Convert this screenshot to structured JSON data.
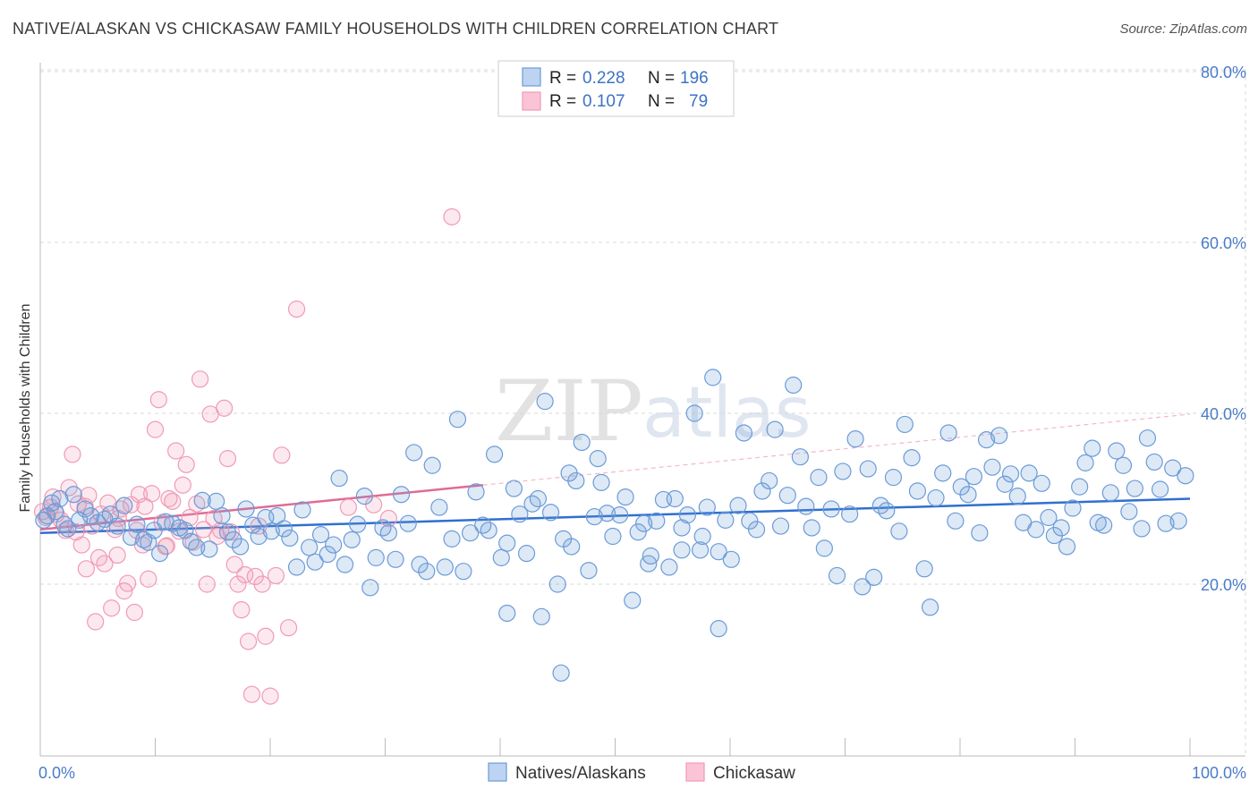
{
  "header": {
    "title": "NATIVE/ALASKAN VS CHICKASAW FAMILY HOUSEHOLDS WITH CHILDREN CORRELATION CHART",
    "source": "Source: ZipAtlas.com"
  },
  "watermark": {
    "zip": "ZIP",
    "atlas": "atlas"
  },
  "colors": {
    "natives": "#6b9bd8",
    "natives_line": "#2f6fd0",
    "chickasaw": "#f19ab5",
    "chickasaw_line": "#e06b95",
    "tick_text": "#4a7cc9",
    "grid": "#d8d8d8"
  },
  "legend": {
    "rows": [
      {
        "r_label": "R =",
        "r_value": "0.228",
        "n_label": "N =",
        "n_value": "196"
      },
      {
        "r_label": "R =",
        "r_value": "0.107",
        "n_label": "N =",
        "n_value": "79"
      }
    ]
  },
  "bottom_legend": [
    "Natives/Alaskans",
    "Chickasaw"
  ],
  "chart_data": {
    "type": "scatter",
    "title": "NATIVE/ALASKAN VS CHICKASAW FAMILY HOUSEHOLDS WITH CHILDREN CORRELATION CHART",
    "xlabel": "",
    "ylabel": "Family Households with Children",
    "xlim": [
      0,
      100
    ],
    "ylim": [
      0,
      82
    ],
    "x_tick_labels": [
      "0.0%",
      "100.0%"
    ],
    "y_ticks": [
      20,
      40,
      60,
      80
    ],
    "y_tick_labels": [
      "20.0%",
      "40.0%",
      "60.0%",
      "80.0%"
    ],
    "grid": true,
    "legend_position": "top-center",
    "series": [
      {
        "name": "Natives/Alaskans",
        "R": 0.228,
        "N": 196,
        "trend": {
          "x": [
            0,
            100
          ],
          "y": [
            26.0,
            30.0
          ]
        },
        "points": [
          [
            0.3,
            27.5
          ],
          [
            0.6,
            28.0
          ],
          [
            1.0,
            29.5
          ],
          [
            1.3,
            28.5
          ],
          [
            1.7,
            30.0
          ],
          [
            2.1,
            27.0
          ],
          [
            2.4,
            26.5
          ],
          [
            2.9,
            30.5
          ],
          [
            3.4,
            27.5
          ],
          [
            3.9,
            28.8
          ],
          [
            4.4,
            28.0
          ],
          [
            5.0,
            27.2
          ],
          [
            5.6,
            27.6
          ],
          [
            6.1,
            28.2
          ],
          [
            6.7,
            26.8
          ],
          [
            7.3,
            29.2
          ],
          [
            7.9,
            25.5
          ],
          [
            8.4,
            27.0
          ],
          [
            9.0,
            25.2
          ],
          [
            9.4,
            24.9
          ],
          [
            9.9,
            26.3
          ],
          [
            10.4,
            23.6
          ],
          [
            10.9,
            27.3
          ],
          [
            11.5,
            27.1
          ],
          [
            12.1,
            26.6
          ],
          [
            12.6,
            26.3
          ],
          [
            13.1,
            25.0
          ],
          [
            13.6,
            24.3
          ],
          [
            14.1,
            29.8
          ],
          [
            14.7,
            24.1
          ],
          [
            15.3,
            29.7
          ],
          [
            15.8,
            28.0
          ],
          [
            16.3,
            26.1
          ],
          [
            16.8,
            25.2
          ],
          [
            17.4,
            24.4
          ],
          [
            17.9,
            28.8
          ],
          [
            18.5,
            26.9
          ],
          [
            19.0,
            25.6
          ],
          [
            19.6,
            27.8
          ],
          [
            20.1,
            26.2
          ],
          [
            20.6,
            28.0
          ],
          [
            21.2,
            26.5
          ],
          [
            21.7,
            25.4
          ],
          [
            22.3,
            22.0
          ],
          [
            22.8,
            28.7
          ],
          [
            23.4,
            24.3
          ],
          [
            23.9,
            22.6
          ],
          [
            24.4,
            25.8
          ],
          [
            25.0,
            23.5
          ],
          [
            25.5,
            24.6
          ],
          [
            26.0,
            32.4
          ],
          [
            26.5,
            22.3
          ],
          [
            27.1,
            25.2
          ],
          [
            27.6,
            27.0
          ],
          [
            28.2,
            30.3
          ],
          [
            28.7,
            19.6
          ],
          [
            29.2,
            23.1
          ],
          [
            29.8,
            26.6
          ],
          [
            30.3,
            26.0
          ],
          [
            30.9,
            22.9
          ],
          [
            31.4,
            30.5
          ],
          [
            32.0,
            27.1
          ],
          [
            32.5,
            35.4
          ],
          [
            33.0,
            22.3
          ],
          [
            33.6,
            21.5
          ],
          [
            34.1,
            33.9
          ],
          [
            34.7,
            29.0
          ],
          [
            35.2,
            22.0
          ],
          [
            35.8,
            25.3
          ],
          [
            36.3,
            39.3
          ],
          [
            36.8,
            21.5
          ],
          [
            37.4,
            26.0
          ],
          [
            37.9,
            30.8
          ],
          [
            38.5,
            26.9
          ],
          [
            39.0,
            26.3
          ],
          [
            39.5,
            35.2
          ],
          [
            40.1,
            23.1
          ],
          [
            40.6,
            24.8
          ],
          [
            41.2,
            31.2
          ],
          [
            41.7,
            28.2
          ],
          [
            42.3,
            23.6
          ],
          [
            42.8,
            29.4
          ],
          [
            43.3,
            30.0
          ],
          [
            43.9,
            41.4
          ],
          [
            44.4,
            28.4
          ],
          [
            45.0,
            20.0
          ],
          [
            45.5,
            25.3
          ],
          [
            46.0,
            33.0
          ],
          [
            46.6,
            32.1
          ],
          [
            47.1,
            36.6
          ],
          [
            47.7,
            21.6
          ],
          [
            48.2,
            27.9
          ],
          [
            48.8,
            31.9
          ],
          [
            49.3,
            28.3
          ],
          [
            49.8,
            25.6
          ],
          [
            50.4,
            28.1
          ],
          [
            50.9,
            30.2
          ],
          [
            51.5,
            18.1
          ],
          [
            52.0,
            26.1
          ],
          [
            52.5,
            27.1
          ],
          [
            53.1,
            23.3
          ],
          [
            53.6,
            27.4
          ],
          [
            54.2,
            29.9
          ],
          [
            54.7,
            22.0
          ],
          [
            55.2,
            30.0
          ],
          [
            55.8,
            26.6
          ],
          [
            56.3,
            28.1
          ],
          [
            56.9,
            40.0
          ],
          [
            57.4,
            24.0
          ],
          [
            58.0,
            29.0
          ],
          [
            58.5,
            44.2
          ],
          [
            59.0,
            23.8
          ],
          [
            59.6,
            27.5
          ],
          [
            60.1,
            22.9
          ],
          [
            60.7,
            29.2
          ],
          [
            61.2,
            37.7
          ],
          [
            61.7,
            27.4
          ],
          [
            62.3,
            26.4
          ],
          [
            62.8,
            30.9
          ],
          [
            63.4,
            32.1
          ],
          [
            63.9,
            38.1
          ],
          [
            64.4,
            26.8
          ],
          [
            65.0,
            30.4
          ],
          [
            65.5,
            43.3
          ],
          [
            66.1,
            34.9
          ],
          [
            66.6,
            29.1
          ],
          [
            67.1,
            26.6
          ],
          [
            67.7,
            32.5
          ],
          [
            68.2,
            24.2
          ],
          [
            68.8,
            28.8
          ],
          [
            69.3,
            21.0
          ],
          [
            69.8,
            33.2
          ],
          [
            70.4,
            28.2
          ],
          [
            70.9,
            37.0
          ],
          [
            71.5,
            19.7
          ],
          [
            72.0,
            33.5
          ],
          [
            72.5,
            20.8
          ],
          [
            73.1,
            29.2
          ],
          [
            73.6,
            28.6
          ],
          [
            74.2,
            32.5
          ],
          [
            74.7,
            26.2
          ],
          [
            75.2,
            38.7
          ],
          [
            75.8,
            34.8
          ],
          [
            76.3,
            30.9
          ],
          [
            76.9,
            21.8
          ],
          [
            77.4,
            17.3
          ],
          [
            77.9,
            30.1
          ],
          [
            78.5,
            33.0
          ],
          [
            79.0,
            37.7
          ],
          [
            79.6,
            27.4
          ],
          [
            80.1,
            31.4
          ],
          [
            80.7,
            30.5
          ],
          [
            81.2,
            32.6
          ],
          [
            81.7,
            26.0
          ],
          [
            82.3,
            36.9
          ],
          [
            82.8,
            33.7
          ],
          [
            83.4,
            37.4
          ],
          [
            83.9,
            31.7
          ],
          [
            84.4,
            32.9
          ],
          [
            85.0,
            30.3
          ],
          [
            85.5,
            27.2
          ],
          [
            86.0,
            33.0
          ],
          [
            86.6,
            26.4
          ],
          [
            87.1,
            31.8
          ],
          [
            87.7,
            27.8
          ],
          [
            88.2,
            25.7
          ],
          [
            88.8,
            26.6
          ],
          [
            89.3,
            24.4
          ],
          [
            89.8,
            28.9
          ],
          [
            90.4,
            31.4
          ],
          [
            90.9,
            34.2
          ],
          [
            91.5,
            35.9
          ],
          [
            92.0,
            27.2
          ],
          [
            92.5,
            26.9
          ],
          [
            93.1,
            30.7
          ],
          [
            93.6,
            35.6
          ],
          [
            94.2,
            33.9
          ],
          [
            94.7,
            28.5
          ],
          [
            95.2,
            31.2
          ],
          [
            95.8,
            26.5
          ],
          [
            96.3,
            37.1
          ],
          [
            96.9,
            34.3
          ],
          [
            97.4,
            31.1
          ],
          [
            97.9,
            27.1
          ],
          [
            98.5,
            33.6
          ],
          [
            99.0,
            27.4
          ],
          [
            99.6,
            32.7
          ],
          [
            59.0,
            14.8
          ],
          [
            45.3,
            9.6
          ],
          [
            55.8,
            24.0
          ],
          [
            40.6,
            16.6
          ],
          [
            43.6,
            16.2
          ],
          [
            57.6,
            25.6
          ],
          [
            46.2,
            24.4
          ],
          [
            48.5,
            34.7
          ],
          [
            52.9,
            22.4
          ]
        ]
      },
      {
        "name": "Chickasaw",
        "R": 0.107,
        "N": 79,
        "trend": {
          "x": [
            0,
            38.5
          ],
          "y": [
            26.4,
            31.6
          ]
        },
        "trend_extension": {
          "x": [
            38.5,
            100
          ],
          "y": [
            31.6,
            39.9
          ]
        },
        "points": [
          [
            0.2,
            28.5
          ],
          [
            0.5,
            27.8
          ],
          [
            0.9,
            29.0
          ],
          [
            1.1,
            30.2
          ],
          [
            1.4,
            28.2
          ],
          [
            1.8,
            27.5
          ],
          [
            2.2,
            26.3
          ],
          [
            2.5,
            31.3
          ],
          [
            2.8,
            35.2
          ],
          [
            3.1,
            26.1
          ],
          [
            3.3,
            29.4
          ],
          [
            3.6,
            24.6
          ],
          [
            3.9,
            29.1
          ],
          [
            4.2,
            30.4
          ],
          [
            4.5,
            26.8
          ],
          [
            4.8,
            15.6
          ],
          [
            5.1,
            23.1
          ],
          [
            5.3,
            28.2
          ],
          [
            5.6,
            22.4
          ],
          [
            5.9,
            29.5
          ],
          [
            6.2,
            17.2
          ],
          [
            6.5,
            26.4
          ],
          [
            6.7,
            23.4
          ],
          [
            7.0,
            28.8
          ],
          [
            7.3,
            19.2
          ],
          [
            7.6,
            20.1
          ],
          [
            7.9,
            29.3
          ],
          [
            8.2,
            16.7
          ],
          [
            8.4,
            26.3
          ],
          [
            8.6,
            30.5
          ],
          [
            8.9,
            24.6
          ],
          [
            9.1,
            29.1
          ],
          [
            9.4,
            20.6
          ],
          [
            9.7,
            30.6
          ],
          [
            10.0,
            38.1
          ],
          [
            10.3,
            41.6
          ],
          [
            10.6,
            27.2
          ],
          [
            10.9,
            24.4
          ],
          [
            11.2,
            30.0
          ],
          [
            11.5,
            29.7
          ],
          [
            11.8,
            35.6
          ],
          [
            12.1,
            26.2
          ],
          [
            12.4,
            31.6
          ],
          [
            12.7,
            34.0
          ],
          [
            13.0,
            27.8
          ],
          [
            13.3,
            24.9
          ],
          [
            13.6,
            29.4
          ],
          [
            13.9,
            44.0
          ],
          [
            14.2,
            26.4
          ],
          [
            14.5,
            20.0
          ],
          [
            14.8,
            39.9
          ],
          [
            15.1,
            27.7
          ],
          [
            15.4,
            25.6
          ],
          [
            15.7,
            26.3
          ],
          [
            16.0,
            40.6
          ],
          [
            16.3,
            34.7
          ],
          [
            16.6,
            26.1
          ],
          [
            16.9,
            22.3
          ],
          [
            17.2,
            20.0
          ],
          [
            17.5,
            17.0
          ],
          [
            17.8,
            21.1
          ],
          [
            18.1,
            13.3
          ],
          [
            18.4,
            7.1
          ],
          [
            18.7,
            20.9
          ],
          [
            19.0,
            26.8
          ],
          [
            19.3,
            20.0
          ],
          [
            19.6,
            13.9
          ],
          [
            20.0,
            6.9
          ],
          [
            20.5,
            21.0
          ],
          [
            21.0,
            35.1
          ],
          [
            21.6,
            14.9
          ],
          [
            22.3,
            52.2
          ],
          [
            26.8,
            29.0
          ],
          [
            29.0,
            29.3
          ],
          [
            30.3,
            27.7
          ],
          [
            35.8,
            63.0
          ],
          [
            11.0,
            24.5
          ],
          [
            6.8,
            27.7
          ],
          [
            4.0,
            21.8
          ]
        ]
      }
    ]
  }
}
